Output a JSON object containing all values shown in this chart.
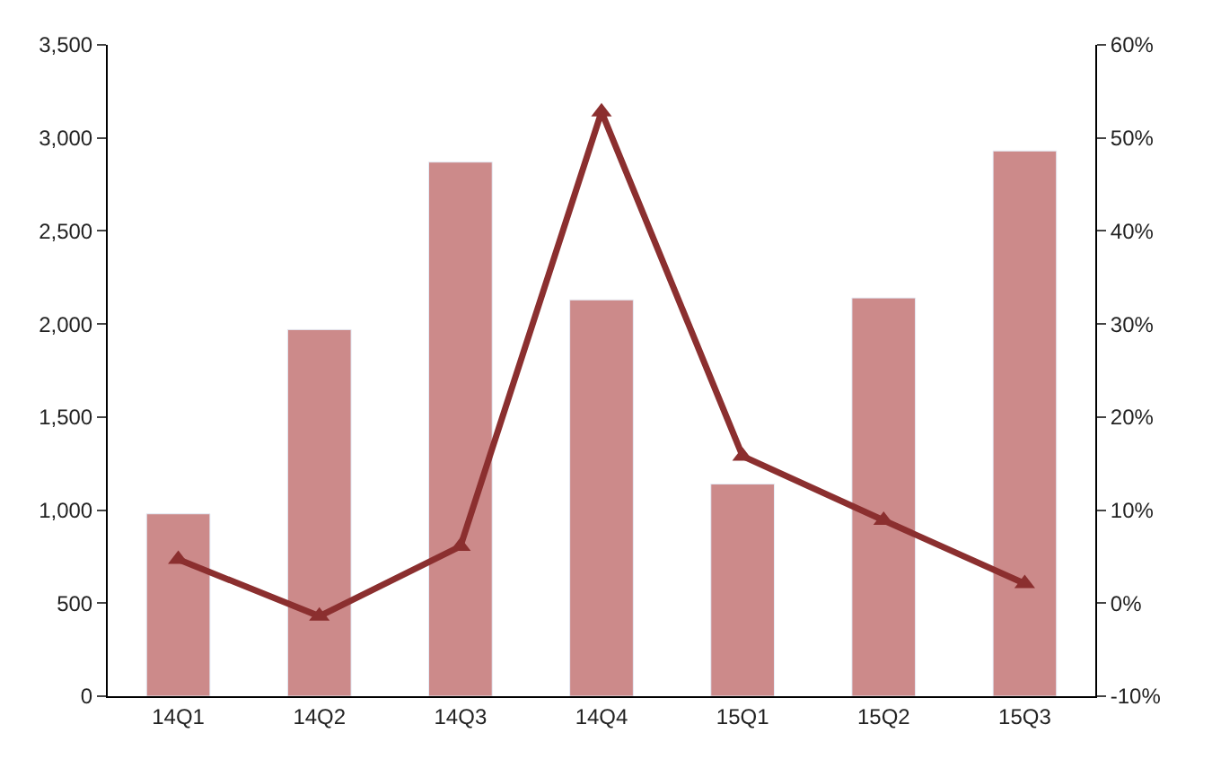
{
  "chart_data": {
    "type": "bar",
    "categories": [
      "14Q1",
      "14Q2",
      "14Q3",
      "14Q4",
      "15Q1",
      "15Q2",
      "15Q3"
    ],
    "series": [
      {
        "color": "#cc8a8a",
        "values": [
          980,
          1970,
          2870,
          2130,
          1140,
          2140,
          2930
        ]
      },
      {
        "type": "line",
        "axis": "y2",
        "color": "#8b2f2f",
        "marker": "triangle",
        "values": [
          4.7,
          -1.4,
          6.1,
          52.8,
          15.8,
          8.9,
          2.1
        ]
      }
    ],
    "ylim": [
      0,
      3500
    ],
    "yticks": [
      {
        "value": 0,
        "label": "0"
      },
      {
        "value": 500,
        "label": "500"
      },
      {
        "value": 1000,
        "label": "1,000"
      },
      {
        "value": 1500,
        "label": "1,500"
      },
      {
        "value": 2000,
        "label": "2,000"
      },
      {
        "value": 2500,
        "label": "2,500"
      },
      {
        "value": 3000,
        "label": "3,000"
      },
      {
        "value": 3500,
        "label": "3,500"
      }
    ],
    "y2lim": [
      -10,
      60
    ],
    "y2ticks": [
      {
        "value": -10,
        "label": "-10%"
      },
      {
        "value": 0,
        "label": "0%"
      },
      {
        "value": 10,
        "label": "10%"
      },
      {
        "value": 20,
        "label": "20%"
      },
      {
        "value": 30,
        "label": "30%"
      },
      {
        "value": 40,
        "label": "40%"
      },
      {
        "value": 50,
        "label": "50%"
      },
      {
        "value": 60,
        "label": "60%"
      }
    ]
  }
}
